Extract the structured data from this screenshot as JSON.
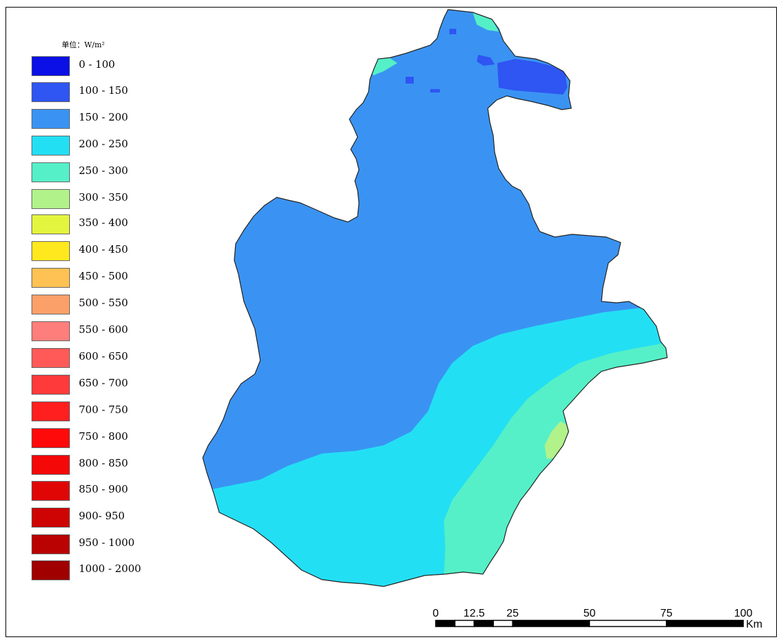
{
  "legend": {
    "title": "单位：W/m²",
    "items": [
      {
        "label": "0 - 100",
        "color": "#0A10E6"
      },
      {
        "label": "100 - 150",
        "color": "#2F55F2"
      },
      {
        "label": "150 - 200",
        "color": "#3A93F2"
      },
      {
        "label": "200 - 250",
        "color": "#23DFF4"
      },
      {
        "label": "250 - 300",
        "color": "#55F0C7"
      },
      {
        "label": "300 - 350",
        "color": "#B2F28A"
      },
      {
        "label": "350 - 400",
        "color": "#E4F53D"
      },
      {
        "label": "400 - 450",
        "color": "#FFE81E"
      },
      {
        "label": "450 - 500",
        "color": "#FDC253"
      },
      {
        "label": "500 - 550",
        "color": "#FCA06A"
      },
      {
        "label": "550 - 600",
        "color": "#FD7E7B"
      },
      {
        "label": "600 - 650",
        "color": "#FF5A58"
      },
      {
        "label": "650 - 700",
        "color": "#FF3A3A"
      },
      {
        "label": "700 - 750",
        "color": "#FF1F1F"
      },
      {
        "label": "750 - 800",
        "color": "#FF0A0A"
      },
      {
        "label": "800 - 850",
        "color": "#F40808"
      },
      {
        "label": "850 - 900",
        "color": "#E00606"
      },
      {
        "label": "900- 950",
        "color": "#CE0404"
      },
      {
        "label": "950 - 1000",
        "color": "#BA0202"
      },
      {
        "label": "1000 - 2000",
        "color": "#A00000"
      }
    ]
  },
  "scalebar": {
    "ticks": [
      "0",
      "12.5",
      "25",
      "50",
      "75",
      "100"
    ],
    "unit": "Km"
  }
}
